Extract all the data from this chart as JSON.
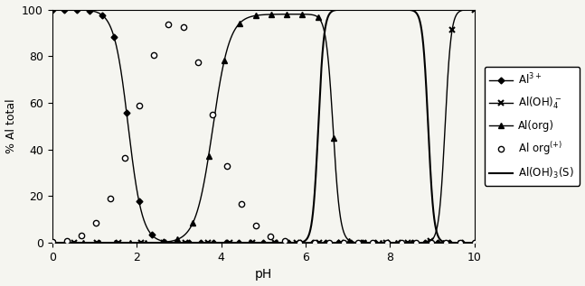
{
  "title": "",
  "xlabel": "pH",
  "ylabel": "% Al total",
  "xlim": [
    0,
    10
  ],
  "ylim": [
    0,
    100
  ],
  "yticks": [
    0,
    20,
    40,
    60,
    80,
    100
  ],
  "xticks": [
    0,
    2,
    4,
    6,
    8,
    10
  ],
  "background_color": "#f5f5f0",
  "line_color": "black",
  "figsize": [
    6.47,
    3.17
  ],
  "dpi": 100
}
